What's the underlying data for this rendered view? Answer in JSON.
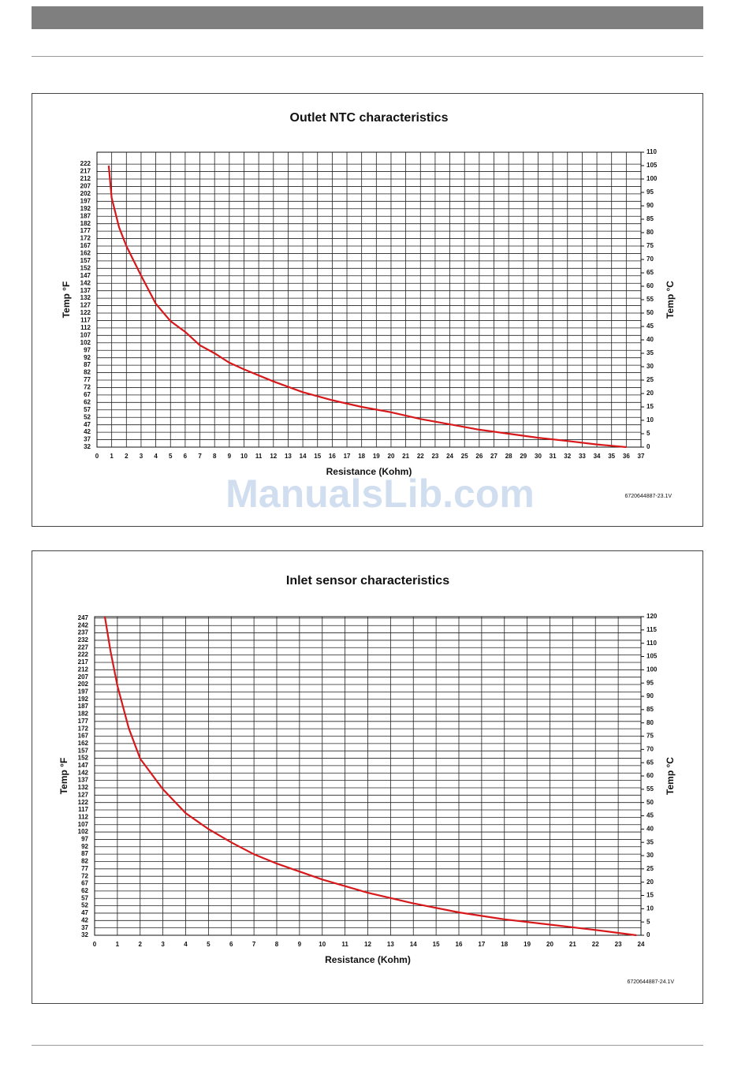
{
  "watermark": "ManualsLib.com",
  "chart_data": [
    {
      "type": "line",
      "title": "Outlet NTC characteristics",
      "x_label": "Resistance (Kohm)",
      "y_label": "Temp °F",
      "y2_label": "Temp °C",
      "annotation": "6720644887-23.1V",
      "x": [
        0.8,
        1,
        1.5,
        2,
        3,
        4,
        5,
        6,
        7,
        8,
        9,
        10,
        12,
        14,
        16,
        18,
        20,
        22,
        24,
        26,
        28,
        30,
        32,
        34,
        36
      ],
      "series": [
        {
          "color": "#d7191c",
          "axis": "y2",
          "values": [
            105,
            93,
            82,
            75,
            64,
            53.5,
            47,
            43,
            38,
            35,
            31.5,
            29,
            24.5,
            20.5,
            17.5,
            15,
            13,
            10.5,
            8.5,
            6.5,
            5,
            3.5,
            2.3,
            1,
            0
          ]
        }
      ],
      "xlim": [
        0,
        37
      ],
      "xticks": [
        0,
        1,
        2,
        3,
        4,
        5,
        6,
        7,
        8,
        9,
        10,
        11,
        12,
        13,
        14,
        15,
        16,
        17,
        18,
        19,
        20,
        21,
        22,
        23,
        24,
        25,
        26,
        27,
        28,
        29,
        30,
        31,
        32,
        33,
        34,
        35,
        36,
        37
      ],
      "ylim": [
        32,
        230
      ],
      "yticks": [
        32,
        37,
        42,
        47,
        52,
        57,
        62,
        67,
        72,
        77,
        82,
        87,
        92,
        97,
        102,
        107,
        112,
        117,
        122,
        127,
        132,
        137,
        142,
        147,
        152,
        157,
        162,
        167,
        172,
        177,
        182,
        187,
        192,
        197,
        202,
        207,
        212,
        217,
        222
      ],
      "y2lim": [
        0,
        110
      ],
      "y2ticks": [
        0,
        5,
        10,
        15,
        20,
        25,
        30,
        35,
        40,
        45,
        50,
        55,
        60,
        65,
        70,
        75,
        80,
        85,
        90,
        95,
        100,
        105,
        110
      ],
      "grid": true
    },
    {
      "type": "line",
      "title": "Inlet sensor characteristics",
      "x_label": "Resistance (Kohm)",
      "y_label": "Temp °F",
      "y2_label": "Temp °C",
      "annotation": "6720644887-24.1V",
      "x": [
        0.45,
        0.7,
        1,
        1.5,
        2,
        3,
        4,
        5,
        6,
        7,
        8,
        10,
        12,
        14,
        16,
        18,
        20,
        22,
        23.8
      ],
      "series": [
        {
          "color": "#d7191c",
          "axis": "y2",
          "values": [
            120,
            107,
            94,
            78,
            66.5,
            55,
            46,
            40,
            35,
            30.5,
            27,
            21,
            16,
            12,
            8.6,
            6,
            4,
            2,
            0
          ]
        }
      ],
      "xlim": [
        0,
        24
      ],
      "xticks": [
        0,
        1,
        2,
        3,
        4,
        5,
        6,
        7,
        8,
        9,
        10,
        11,
        12,
        13,
        14,
        15,
        16,
        17,
        18,
        19,
        20,
        21,
        22,
        23,
        24
      ],
      "ylim": [
        32,
        248
      ],
      "yticks": [
        32,
        37,
        42,
        47,
        52,
        57,
        62,
        67,
        72,
        77,
        82,
        87,
        92,
        97,
        102,
        107,
        112,
        117,
        122,
        127,
        132,
        137,
        142,
        147,
        152,
        157,
        162,
        167,
        172,
        177,
        182,
        187,
        192,
        197,
        202,
        207,
        212,
        217,
        222,
        227,
        232,
        237,
        242,
        247
      ],
      "y2lim": [
        0,
        120
      ],
      "y2ticks": [
        0,
        5,
        10,
        15,
        20,
        25,
        30,
        35,
        40,
        45,
        50,
        55,
        60,
        65,
        70,
        75,
        80,
        85,
        90,
        95,
        100,
        105,
        110,
        115,
        120
      ],
      "grid": true
    }
  ]
}
